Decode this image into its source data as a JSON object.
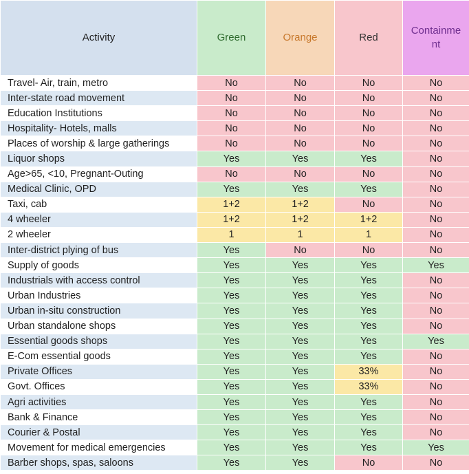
{
  "headers": [
    "Activity",
    "Green",
    "Orange",
    "Red",
    "Containme\nnt"
  ],
  "colors": {
    "yes": "#c9ebcb",
    "no": "#f8c6cc",
    "partial": "#fbe8a6",
    "activity_alt": "#dde8f3",
    "green_header": "#c9ebcb",
    "orange_header": "#f7d7b8",
    "red_header": "#f8c6cc",
    "containment_header": "#eaa6ee"
  },
  "rows": [
    [
      "Travel- Air, train, metro",
      "No",
      "No",
      "No",
      "No"
    ],
    [
      "Inter-state road movement",
      "No",
      "No",
      "No",
      "No"
    ],
    [
      "Education Institutions",
      "No",
      "No",
      "No",
      "No"
    ],
    [
      "Hospitality- Hotels, malls",
      "No",
      "No",
      "No",
      "No"
    ],
    [
      "Places of worship & large gatherings",
      "No",
      "No",
      "No",
      "No"
    ],
    [
      "Liquor shops",
      "Yes",
      "Yes",
      "Yes",
      "No"
    ],
    [
      "Age>65, <10, Pregnant-Outing",
      "No",
      "No",
      "No",
      "No"
    ],
    [
      "Medical Clinic, OPD",
      "Yes",
      "Yes",
      "Yes",
      "No"
    ],
    [
      "Taxi, cab",
      "1+2",
      "1+2",
      "No",
      "No"
    ],
    [
      "4 wheeler",
      "1+2",
      "1+2",
      "1+2",
      "No"
    ],
    [
      "2 wheeler",
      "1",
      "1",
      "1",
      "No"
    ],
    [
      "Inter-district plying of bus",
      "Yes",
      "No",
      "No",
      "No"
    ],
    [
      "Supply of goods",
      "Yes",
      "Yes",
      "Yes",
      "Yes"
    ],
    [
      "Industrials with access control",
      "Yes",
      "Yes",
      "Yes",
      "No"
    ],
    [
      "Urban Industries",
      "Yes",
      "Yes",
      "Yes",
      "No"
    ],
    [
      "Urban in-situ construction",
      "Yes",
      "Yes",
      "Yes",
      "No"
    ],
    [
      "Urban standalone shops",
      "Yes",
      "Yes",
      "Yes",
      "No"
    ],
    [
      "Essential goods shops",
      "Yes",
      "Yes",
      "Yes",
      "Yes"
    ],
    [
      "E-Com essential goods",
      "Yes",
      "Yes",
      "Yes",
      "No"
    ],
    [
      "Private Offices",
      "Yes",
      "Yes",
      "33%",
      "No"
    ],
    [
      "Govt. Offices",
      "Yes",
      "Yes",
      "33%",
      "No"
    ],
    [
      "Agri activities",
      "Yes",
      "Yes",
      "Yes",
      "No"
    ],
    [
      "Bank & Finance",
      "Yes",
      "Yes",
      "Yes",
      "No"
    ],
    [
      "Courier & Postal",
      "Yes",
      "Yes",
      "Yes",
      "No"
    ],
    [
      "Movement for medical emergencies",
      "Yes",
      "Yes",
      "Yes",
      "Yes"
    ],
    [
      "Barber shops, spas, saloons",
      "Yes",
      "Yes",
      "No",
      "No"
    ]
  ]
}
